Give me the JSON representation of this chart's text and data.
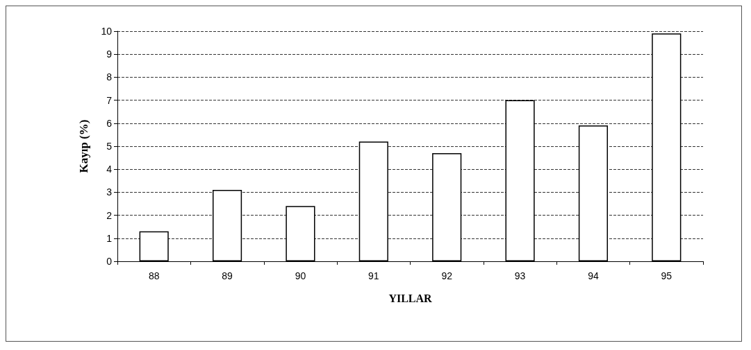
{
  "chart_data": {
    "type": "bar",
    "xlabel": "YILLAR",
    "ylabel": "Kayıp (%)",
    "categories": [
      "88",
      "89",
      "90",
      "91",
      "92",
      "93",
      "94",
      "95"
    ],
    "values": [
      1.3,
      3.1,
      2.4,
      5.2,
      4.7,
      7.0,
      5.9,
      9.9
    ],
    "color": "#ffffff",
    "ylim": [
      0,
      10
    ],
    "yticks": [
      0,
      1,
      2,
      3,
      4,
      5,
      6,
      7,
      8,
      9,
      10
    ],
    "grid": "y"
  }
}
